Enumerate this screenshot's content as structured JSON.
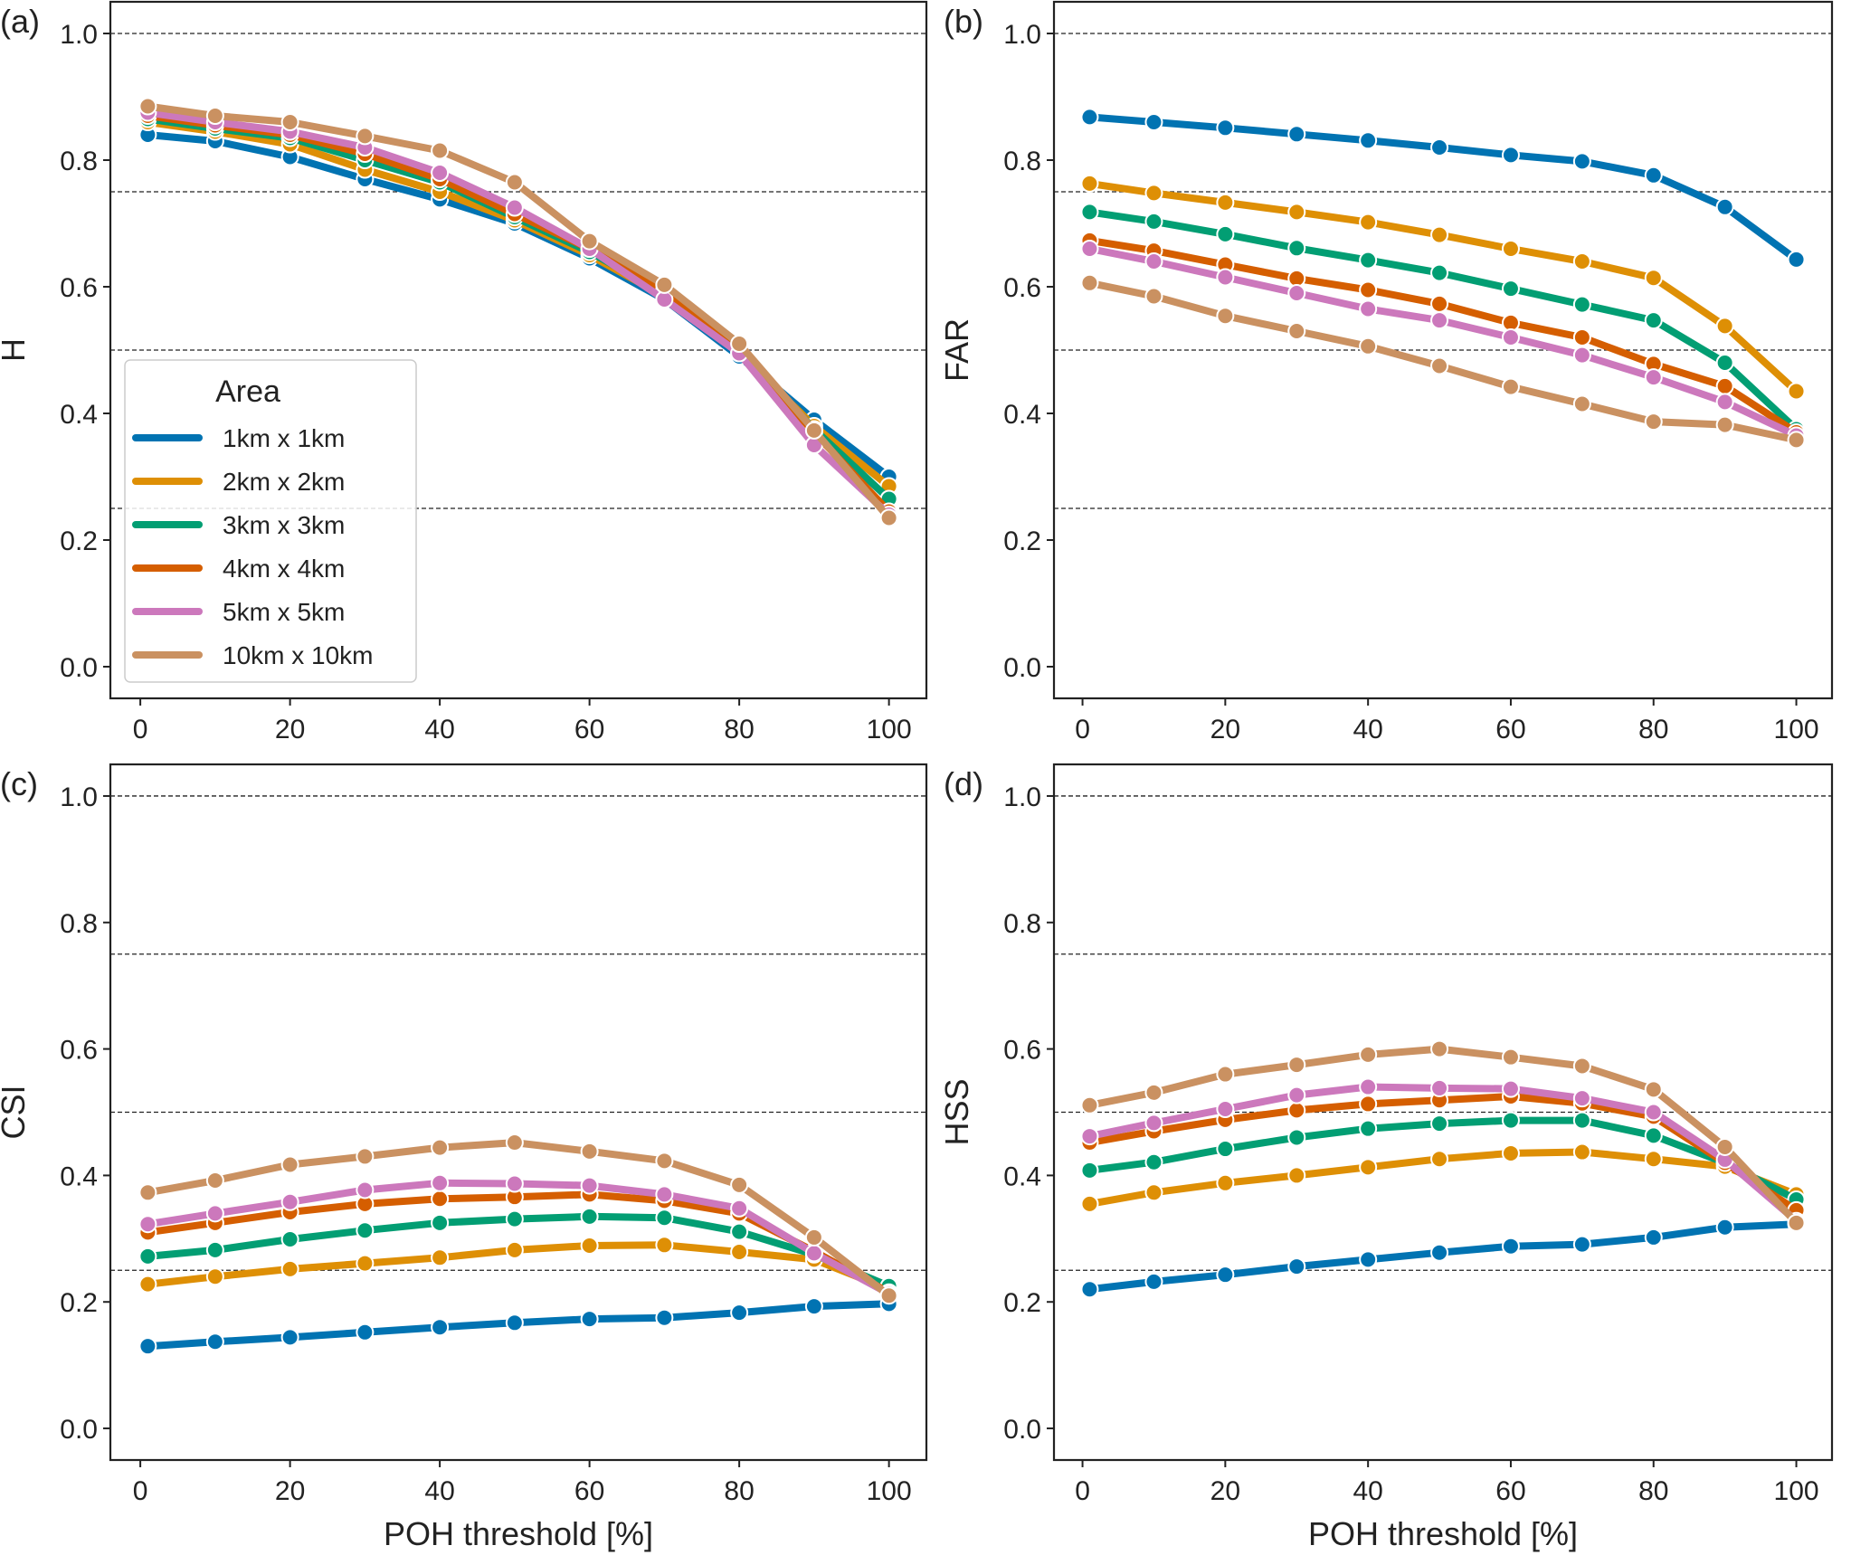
{
  "figure": {
    "xlabel": "POH threshold [%]",
    "legend": {
      "title": "Area",
      "placement": "lower-left of panel (a)"
    },
    "reference_lines": [
      0.25,
      0.5,
      0.75,
      1.0
    ],
    "xticks": [
      "0",
      "20",
      "40",
      "60",
      "80",
      "100"
    ],
    "yticks": [
      "0.0",
      "0.2",
      "0.4",
      "0.6",
      "0.8",
      "1.0"
    ]
  },
  "chart_data": [
    {
      "panel": "(a)",
      "type": "line",
      "ylabel": "H",
      "xlabel": "",
      "xlim": [
        -4,
        105
      ],
      "ylim": [
        -0.05,
        1.05
      ],
      "grid": false,
      "x": [
        1,
        10,
        20,
        30,
        40,
        50,
        60,
        70,
        80,
        90,
        100
      ],
      "series": [
        {
          "name": "1km x 1km",
          "color": "#0173b2",
          "values": [
            0.84,
            0.83,
            0.805,
            0.77,
            0.738,
            0.7,
            0.645,
            0.58,
            0.49,
            0.39,
            0.3
          ]
        },
        {
          "name": "2km x 2km",
          "color": "#de8f05",
          "values": [
            0.86,
            0.845,
            0.825,
            0.785,
            0.75,
            0.705,
            0.65,
            0.585,
            0.495,
            0.38,
            0.285
          ]
        },
        {
          "name": "3km x 3km",
          "color": "#029e73",
          "values": [
            0.865,
            0.85,
            0.835,
            0.8,
            0.765,
            0.71,
            0.655,
            0.59,
            0.5,
            0.375,
            0.265
          ]
        },
        {
          "name": "4km x 4km",
          "color": "#d55e00",
          "values": [
            0.87,
            0.855,
            0.84,
            0.81,
            0.77,
            0.715,
            0.66,
            0.595,
            0.5,
            0.37,
            0.245
          ]
        },
        {
          "name": "5km x 5km",
          "color": "#cc78bc",
          "values": [
            0.875,
            0.86,
            0.845,
            0.82,
            0.78,
            0.725,
            0.66,
            0.58,
            0.495,
            0.35,
            0.24
          ]
        },
        {
          "name": "10km x 10km",
          "color": "#ca9161",
          "values": [
            0.885,
            0.87,
            0.86,
            0.838,
            0.815,
            0.765,
            0.672,
            0.603,
            0.51,
            0.373,
            0.235
          ]
        }
      ]
    },
    {
      "panel": "(b)",
      "type": "line",
      "ylabel": "FAR",
      "xlabel": "",
      "xlim": [
        -4,
        105
      ],
      "ylim": [
        -0.05,
        1.05
      ],
      "grid": false,
      "x": [
        1,
        10,
        20,
        30,
        40,
        50,
        60,
        70,
        80,
        90,
        100
      ],
      "series": [
        {
          "name": "1km x 1km",
          "color": "#0173b2",
          "values": [
            0.868,
            0.86,
            0.851,
            0.841,
            0.831,
            0.82,
            0.808,
            0.798,
            0.776,
            0.726,
            0.643
          ]
        },
        {
          "name": "2km x 2km",
          "color": "#de8f05",
          "values": [
            0.763,
            0.748,
            0.733,
            0.718,
            0.702,
            0.682,
            0.66,
            0.64,
            0.614,
            0.538,
            0.435
          ]
        },
        {
          "name": "3km x 3km",
          "color": "#029e73",
          "values": [
            0.718,
            0.703,
            0.683,
            0.661,
            0.642,
            0.622,
            0.597,
            0.572,
            0.547,
            0.48,
            0.375
          ]
        },
        {
          "name": "4km x 4km",
          "color": "#d55e00",
          "values": [
            0.673,
            0.657,
            0.635,
            0.613,
            0.595,
            0.573,
            0.543,
            0.52,
            0.478,
            0.443,
            0.37
          ]
        },
        {
          "name": "5km x 5km",
          "color": "#cc78bc",
          "values": [
            0.66,
            0.64,
            0.615,
            0.59,
            0.565,
            0.547,
            0.52,
            0.492,
            0.457,
            0.418,
            0.365
          ]
        },
        {
          "name": "10km x 10km",
          "color": "#ca9161",
          "values": [
            0.606,
            0.585,
            0.554,
            0.53,
            0.506,
            0.475,
            0.442,
            0.415,
            0.387,
            0.382,
            0.358
          ]
        }
      ]
    },
    {
      "panel": "(c)",
      "type": "line",
      "ylabel": "CSI",
      "xlabel": "POH threshold [%]",
      "xlim": [
        -4,
        105
      ],
      "ylim": [
        -0.05,
        1.05
      ],
      "grid": false,
      "x": [
        1,
        10,
        20,
        30,
        40,
        50,
        60,
        70,
        80,
        90,
        100
      ],
      "series": [
        {
          "name": "1km x 1km",
          "color": "#0173b2",
          "values": [
            0.13,
            0.137,
            0.144,
            0.152,
            0.16,
            0.167,
            0.173,
            0.175,
            0.183,
            0.193,
            0.197
          ]
        },
        {
          "name": "2km x 2km",
          "color": "#de8f05",
          "values": [
            0.228,
            0.24,
            0.252,
            0.261,
            0.27,
            0.282,
            0.289,
            0.29,
            0.279,
            0.267,
            0.22
          ]
        },
        {
          "name": "3km x 3km",
          "color": "#029e73",
          "values": [
            0.272,
            0.282,
            0.299,
            0.313,
            0.325,
            0.331,
            0.335,
            0.333,
            0.311,
            0.275,
            0.225
          ]
        },
        {
          "name": "4km x 4km",
          "color": "#d55e00",
          "values": [
            0.31,
            0.325,
            0.342,
            0.355,
            0.363,
            0.366,
            0.37,
            0.36,
            0.34,
            0.28,
            0.215
          ]
        },
        {
          "name": "5km x 5km",
          "color": "#cc78bc",
          "values": [
            0.323,
            0.34,
            0.358,
            0.377,
            0.388,
            0.387,
            0.384,
            0.37,
            0.348,
            0.277,
            0.213
          ]
        },
        {
          "name": "10km x 10km",
          "color": "#ca9161",
          "values": [
            0.373,
            0.392,
            0.417,
            0.43,
            0.444,
            0.452,
            0.438,
            0.423,
            0.385,
            0.302,
            0.21
          ]
        }
      ]
    },
    {
      "panel": "(d)",
      "type": "line",
      "ylabel": "HSS",
      "xlabel": "POH threshold [%]",
      "xlim": [
        -4,
        105
      ],
      "ylim": [
        -0.05,
        1.05
      ],
      "grid": false,
      "x": [
        1,
        10,
        20,
        30,
        40,
        50,
        60,
        70,
        80,
        90,
        100
      ],
      "series": [
        {
          "name": "1km x 1km",
          "color": "#0173b2",
          "values": [
            0.22,
            0.232,
            0.243,
            0.256,
            0.267,
            0.278,
            0.288,
            0.291,
            0.302,
            0.318,
            0.323
          ]
        },
        {
          "name": "2km x 2km",
          "color": "#de8f05",
          "values": [
            0.355,
            0.373,
            0.388,
            0.4,
            0.413,
            0.426,
            0.435,
            0.437,
            0.426,
            0.414,
            0.37
          ]
        },
        {
          "name": "3km x 3km",
          "color": "#029e73",
          "values": [
            0.408,
            0.421,
            0.442,
            0.46,
            0.474,
            0.482,
            0.487,
            0.487,
            0.463,
            0.42,
            0.362
          ]
        },
        {
          "name": "4km x 4km",
          "color": "#d55e00",
          "values": [
            0.452,
            0.47,
            0.488,
            0.503,
            0.513,
            0.519,
            0.525,
            0.514,
            0.493,
            0.42,
            0.345
          ]
        },
        {
          "name": "5km x 5km",
          "color": "#cc78bc",
          "values": [
            0.462,
            0.483,
            0.505,
            0.527,
            0.54,
            0.538,
            0.537,
            0.522,
            0.5,
            0.425,
            0.328
          ]
        },
        {
          "name": "10km x 10km",
          "color": "#ca9161",
          "values": [
            0.511,
            0.531,
            0.56,
            0.575,
            0.591,
            0.6,
            0.587,
            0.573,
            0.536,
            0.445,
            0.325
          ]
        }
      ]
    }
  ]
}
